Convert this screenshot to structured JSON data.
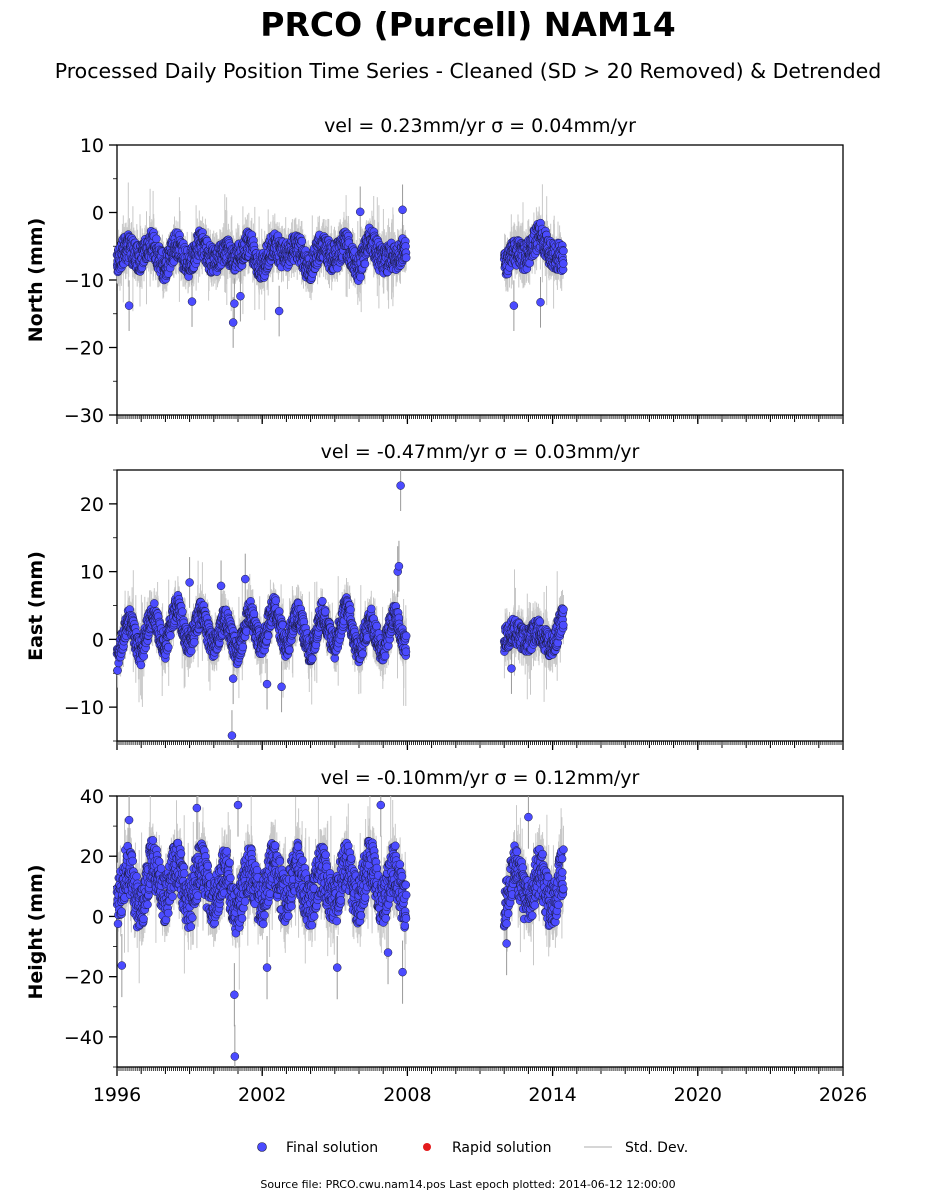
{
  "title": "PRCO (Purcell) NAM14",
  "subtitle": "Processed Daily Position Time Series - Cleaned (SD > 20 Removed) & Detrended",
  "legend": {
    "final": "Final solution",
    "rapid": "Rapid solution",
    "std": "Std. Dev."
  },
  "source": "Source file: PRCO.cwu.nam14.pos  Last epoch plotted: 2014-06-12 12:00:00",
  "colors": {
    "final": "#4b4bff",
    "rapid": "#e41a1c",
    "std": "#c8c8c8",
    "edge": "#1a1a3a"
  },
  "chart_data": [
    {
      "type": "scatter",
      "title": "vel = 0.23mm/yr   σ = 0.04mm/yr",
      "ylabel": "North (mm)",
      "xlim": [
        1996,
        2026
      ],
      "ylim": [
        -30,
        10
      ],
      "yticks": [
        -30,
        -20,
        -10,
        0,
        10
      ],
      "xticks": [
        1996,
        2002,
        2008,
        2014,
        2020,
        2026
      ],
      "segments": [
        [
          1996.0,
          2007.95
        ],
        [
          2012.0,
          2014.45
        ]
      ],
      "series": [
        {
          "name": "Final solution",
          "x": [
            1996.05,
            1996.5,
            1997.0,
            1997.5,
            1998.0,
            1998.5,
            1999.0,
            1999.5,
            2000.0,
            2000.5,
            2001.0,
            2001.5,
            2002.0,
            2002.5,
            2003.0,
            2003.5,
            2004.0,
            2004.5,
            2005.0,
            2005.5,
            2006.0,
            2006.5,
            2007.0,
            2007.5,
            2007.9,
            2012.1,
            2012.5,
            2013.0,
            2013.5,
            2014.0,
            2014.4
          ],
          "y": [
            -6,
            -6.5,
            -5.5,
            -6,
            -7,
            -6,
            -6.5,
            -5.5,
            -6,
            -7,
            -5.5,
            -6,
            -7,
            -6,
            -5,
            -6.5,
            -7,
            -6,
            -5.5,
            -6,
            -7,
            -5,
            -6,
            -8,
            -4,
            -7,
            -7,
            -5,
            -4.5,
            -5,
            -8
          ]
        },
        {
          "name": "outliers",
          "x": [
            1996.5,
            1999.1,
            2000.8,
            2000.85,
            2001.1,
            2002.7,
            2006.05,
            2007.8,
            2012.4,
            2013.5
          ],
          "y": [
            -13.8,
            -13.2,
            -16.3,
            -13.5,
            -12.4,
            -14.6,
            0.1,
            0.4,
            -13.8,
            -13.3
          ]
        },
        {
          "name": "Rapid solution",
          "x": [],
          "y": []
        }
      ]
    },
    {
      "type": "scatter",
      "title": "vel = -0.47mm/yr   σ = 0.03mm/yr",
      "ylabel": "East (mm)",
      "xlim": [
        1996,
        2026
      ],
      "ylim": [
        -15,
        25
      ],
      "yticks": [
        -10,
        0,
        10,
        20
      ],
      "xticks": [
        1996,
        2002,
        2008,
        2014,
        2020,
        2026
      ],
      "segments": [
        [
          1996.0,
          2007.95
        ],
        [
          2012.0,
          2014.45
        ]
      ],
      "series": [
        {
          "name": "Final solution",
          "x": [
            1996.05,
            1996.5,
            1997.0,
            1997.5,
            1998.0,
            1998.5,
            1999.0,
            1999.5,
            2000.0,
            2000.5,
            2001.0,
            2001.5,
            2002.0,
            2002.5,
            2003.0,
            2003.5,
            2004.0,
            2004.5,
            2005.0,
            2005.5,
            2006.0,
            2006.5,
            2007.0,
            2007.5,
            2007.9,
            2012.1,
            2012.5,
            2013.0,
            2013.5,
            2014.0,
            2014.4
          ],
          "y": [
            -2,
            2,
            -1,
            3,
            0,
            4,
            0,
            3,
            0,
            2,
            -1,
            3,
            0,
            4,
            0,
            3,
            -1,
            3,
            0,
            4,
            -1,
            2,
            -1,
            3,
            0,
            1,
            0,
            1,
            0,
            0,
            2
          ]
        },
        {
          "name": "outliers",
          "x": [
            1999.0,
            2000.3,
            2000.75,
            2000.8,
            2001.3,
            2002.2,
            2002.8,
            2007.6,
            2007.65,
            2007.72,
            2012.3
          ],
          "y": [
            8.4,
            7.9,
            -14.2,
            -5.8,
            8.9,
            -6.6,
            -7.0,
            10.0,
            10.8,
            22.7,
            -4.3
          ]
        },
        {
          "name": "Rapid solution",
          "x": [],
          "y": []
        }
      ]
    },
    {
      "type": "scatter",
      "title": "vel = -0.10mm/yr   σ = 0.12mm/yr",
      "ylabel": "Height (mm)",
      "xlim": [
        1996,
        2026
      ],
      "ylim": [
        -50,
        40
      ],
      "yticks": [
        -40,
        -20,
        0,
        20,
        40
      ],
      "xticks": [
        1996,
        2002,
        2008,
        2014,
        2020,
        2026
      ],
      "segments": [
        [
          1996.0,
          2007.95
        ],
        [
          2012.0,
          2014.45
        ]
      ],
      "series": [
        {
          "name": "Final solution",
          "x": [
            1996.05,
            1996.5,
            1997.0,
            1997.5,
            1998.0,
            1998.5,
            1999.0,
            1999.5,
            2000.0,
            2000.5,
            2001.0,
            2001.5,
            2002.0,
            2002.5,
            2003.0,
            2003.5,
            2004.0,
            2004.5,
            2005.0,
            2005.5,
            2006.0,
            2006.5,
            2007.0,
            2007.5,
            2007.9,
            2012.1,
            2012.5,
            2013.0,
            2013.5,
            2014.0,
            2014.4
          ],
          "y": [
            8,
            12,
            6,
            14,
            10,
            13,
            8,
            12,
            9,
            11,
            6,
            12,
            9,
            13,
            10,
            12,
            8,
            11,
            9,
            13,
            10,
            14,
            9,
            11,
            8,
            8,
            12,
            9,
            10,
            8,
            10
          ]
        },
        {
          "name": "outliers",
          "x": [
            1996.2,
            1996.5,
            1999.3,
            2000.85,
            2001.0,
            2000.87,
            2002.2,
            2005.1,
            2006.9,
            2007.2,
            2007.8,
            2012.1,
            2013.0
          ],
          "y": [
            -16.3,
            32,
            36,
            -26,
            37,
            -46.5,
            -17,
            -17,
            37,
            -12,
            -18.5,
            -9,
            33
          ]
        },
        {
          "name": "Rapid solution",
          "x": [],
          "y": []
        }
      ]
    }
  ]
}
